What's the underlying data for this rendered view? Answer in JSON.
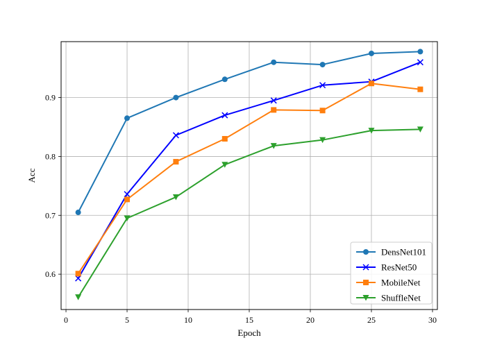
{
  "chart_data": {
    "type": "line",
    "title": "",
    "xlabel": "Epoch",
    "ylabel": "Acc",
    "x": [
      1,
      5,
      9,
      13,
      17,
      21,
      25,
      29
    ],
    "xlim": [
      -0.4,
      30.4
    ],
    "ylim": [
      0.54,
      0.995
    ],
    "xticks": [
      0,
      5,
      10,
      15,
      20,
      25,
      30
    ],
    "yticks": [
      0.6,
      0.7,
      0.8,
      0.9
    ],
    "ytick_labels": [
      "0.6",
      "0.7",
      "0.8",
      "0.9"
    ],
    "grid": true,
    "legend_position": "lower-right",
    "series": [
      {
        "name": "DensNet101",
        "color": "#1f77b4",
        "marker": "circle",
        "values": [
          0.705,
          0.865,
          0.9,
          0.931,
          0.96,
          0.956,
          0.975,
          0.978
        ]
      },
      {
        "name": "ResNet50",
        "color": "#0000ff",
        "marker": "x",
        "values": [
          0.593,
          0.736,
          0.836,
          0.87,
          0.895,
          0.921,
          0.927,
          0.96
        ]
      },
      {
        "name": "MobileNet",
        "color": "#ff7f0e",
        "marker": "square",
        "values": [
          0.601,
          0.727,
          0.791,
          0.83,
          0.879,
          0.878,
          0.924,
          0.914
        ]
      },
      {
        "name": "ShuffleNet",
        "color": "#2ca02c",
        "marker": "triangle-down",
        "values": [
          0.561,
          0.695,
          0.731,
          0.786,
          0.818,
          0.828,
          0.844,
          0.846
        ]
      }
    ]
  }
}
